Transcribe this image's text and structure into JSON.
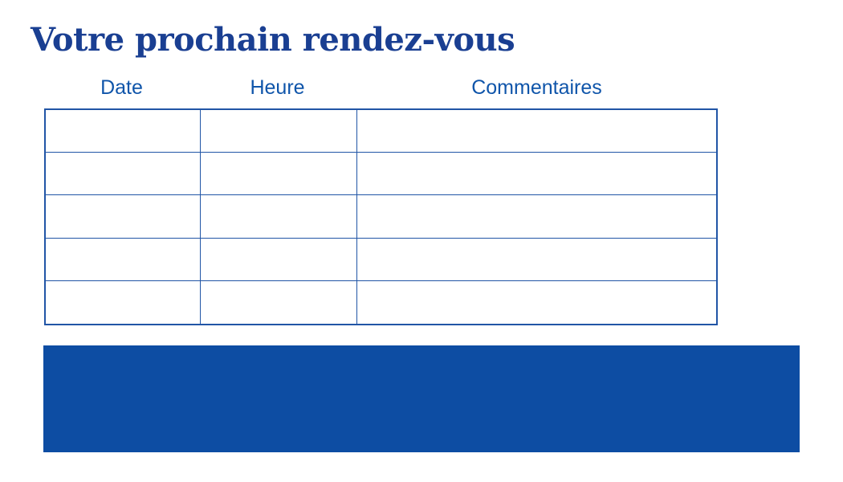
{
  "page": {
    "title": "Votre prochain rendez-vous"
  },
  "colors": {
    "title_text": "#1a3f92",
    "header_text": "#0f55aa",
    "table_border": "#2155a6",
    "banner_fill": "#0d4da3",
    "background": "#ffffff"
  },
  "table": {
    "headers": [
      "Date",
      "Heure",
      "Commentaires"
    ],
    "rows": [
      [
        "",
        "",
        ""
      ],
      [
        "",
        "",
        ""
      ],
      [
        "",
        "",
        ""
      ],
      [
        "",
        "",
        ""
      ],
      [
        "",
        "",
        ""
      ]
    ]
  },
  "banner": {
    "text": ""
  }
}
